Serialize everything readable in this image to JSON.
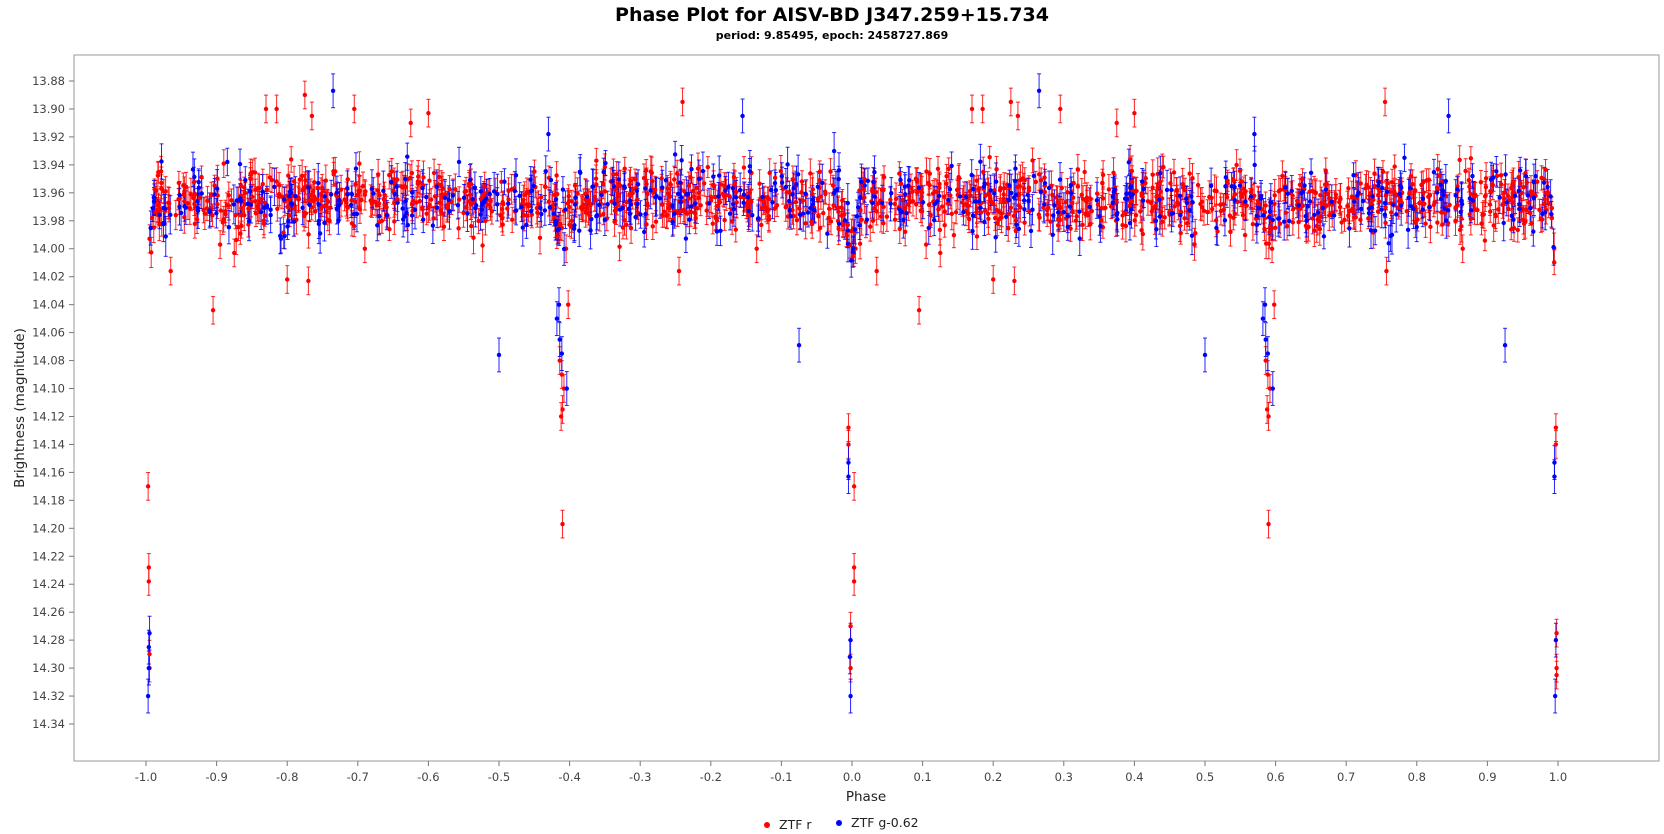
{
  "chart_data": {
    "type": "scatter",
    "title": "Phase Plot for AISV-BD J347.259+15.734",
    "subtitle": "period: 9.85495, epoch: 2458727.869",
    "xlabel": "Phase",
    "ylabel": "Brightness (magnitude)",
    "xlim": [
      -1.1,
      1.1
    ],
    "ylim": [
      14.353,
      13.86
    ],
    "y_inverted": true,
    "x_ticks": [
      "-1.0",
      "-0.9",
      "-0.8",
      "-0.7",
      "-0.6",
      "-0.5",
      "-0.4",
      "-0.3",
      "-0.2",
      "-0.1",
      "0.0",
      "0.1",
      "0.2",
      "0.3",
      "0.4",
      "0.5",
      "0.6",
      "0.7",
      "0.8",
      "0.9",
      "1.0"
    ],
    "y_ticks": [
      "13.88",
      "13.90",
      "13.92",
      "13.94",
      "13.96",
      "13.98",
      "14.00",
      "14.02",
      "14.04",
      "14.06",
      "14.08",
      "14.10",
      "14.12",
      "14.14",
      "14.16",
      "14.18",
      "14.20",
      "14.22",
      "14.24",
      "14.26",
      "14.28",
      "14.30",
      "14.32",
      "14.34"
    ],
    "grid": false,
    "legend_position": "bottom-center",
    "baseline_magnitude": 13.965,
    "series": [
      {
        "name": "ZTF r",
        "color": "#ff0000",
        "primary_eclipse_points": [
          [
            -0.997,
            14.17
          ],
          [
            -0.996,
            14.228
          ],
          [
            -0.996,
            14.238
          ],
          [
            -0.995,
            14.29
          ],
          [
            -0.995,
            14.3
          ],
          [
            0.003,
            14.228
          ],
          [
            0.003,
            14.238
          ],
          [
            -0.005,
            14.128
          ],
          [
            -0.005,
            14.14
          ],
          [
            0.003,
            14.17
          ],
          [
            -0.002,
            14.27
          ],
          [
            -0.002,
            14.3
          ],
          [
            0.997,
            14.128
          ],
          [
            0.997,
            14.14
          ],
          [
            0.998,
            14.275
          ],
          [
            0.998,
            14.3
          ],
          [
            0.998,
            14.305
          ]
        ],
        "secondary_eclipse_points": [
          [
            -0.412,
            14.12
          ],
          [
            -0.41,
            14.115
          ],
          [
            -0.411,
            14.09
          ],
          [
            -0.414,
            14.08
          ],
          [
            -0.408,
            14.1
          ],
          [
            -0.41,
            14.197
          ],
          [
            -0.405,
            14.0
          ],
          [
            -0.402,
            14.04
          ],
          [
            0.59,
            14.12
          ],
          [
            0.588,
            14.115
          ],
          [
            0.589,
            14.09
          ],
          [
            0.586,
            14.08
          ],
          [
            0.592,
            14.1
          ],
          [
            0.59,
            14.197
          ],
          [
            0.595,
            14.0
          ],
          [
            0.598,
            14.04
          ]
        ],
        "outlier_points": [
          [
            -0.965,
            14.016
          ],
          [
            -0.905,
            14.044
          ],
          [
            -0.895,
            13.997
          ],
          [
            -0.875,
            14.003
          ],
          [
            -0.83,
            13.9
          ],
          [
            -0.815,
            13.9
          ],
          [
            -0.8,
            14.022
          ],
          [
            -0.775,
            13.89
          ],
          [
            -0.77,
            14.023
          ],
          [
            -0.765,
            13.905
          ],
          [
            -0.74,
            13.98
          ],
          [
            -0.705,
            13.9
          ],
          [
            -0.69,
            14.0
          ],
          [
            -0.625,
            13.91
          ],
          [
            -0.6,
            13.903
          ],
          [
            -0.24,
            13.895
          ],
          [
            -0.245,
            14.016
          ],
          [
            -0.135,
            14.0
          ],
          [
            0.035,
            14.016
          ],
          [
            0.095,
            14.044
          ],
          [
            0.105,
            13.997
          ],
          [
            0.125,
            14.003
          ],
          [
            0.17,
            13.9
          ],
          [
            0.185,
            13.9
          ],
          [
            0.2,
            14.022
          ],
          [
            0.225,
            13.895
          ],
          [
            0.23,
            14.023
          ],
          [
            0.235,
            13.905
          ],
          [
            0.295,
            13.9
          ],
          [
            0.375,
            13.91
          ],
          [
            0.4,
            13.903
          ],
          [
            0.755,
            13.895
          ],
          [
            0.757,
            14.016
          ],
          [
            0.865,
            14.0
          ]
        ]
      },
      {
        "name": "ZTF g-0.62",
        "color": "#0000ff",
        "primary_eclipse_points": [
          [
            -0.996,
            14.285
          ],
          [
            -0.996,
            14.3
          ],
          [
            -0.997,
            14.32
          ],
          [
            -0.995,
            14.275
          ],
          [
            -0.005,
            14.153
          ],
          [
            -0.005,
            14.163
          ],
          [
            -0.002,
            14.28
          ],
          [
            -0.003,
            14.292
          ],
          [
            -0.002,
            14.32
          ],
          [
            0.995,
            14.153
          ],
          [
            0.995,
            14.163
          ],
          [
            0.997,
            14.28
          ],
          [
            0.996,
            14.32
          ]
        ],
        "secondary_eclipse_points": [
          [
            -0.418,
            14.05
          ],
          [
            -0.414,
            14.065
          ],
          [
            -0.411,
            14.075
          ],
          [
            -0.404,
            14.1
          ],
          [
            -0.415,
            14.04
          ],
          [
            0.582,
            14.05
          ],
          [
            0.586,
            14.065
          ],
          [
            0.589,
            14.075
          ],
          [
            0.596,
            14.1
          ],
          [
            0.585,
            14.04
          ]
        ],
        "outlier_points": [
          [
            -0.5,
            14.076
          ],
          [
            -0.075,
            14.069
          ],
          [
            0.5,
            14.076
          ],
          [
            0.925,
            14.069
          ],
          [
            -0.735,
            13.887
          ],
          [
            0.265,
            13.887
          ],
          [
            -0.155,
            13.905
          ],
          [
            0.845,
            13.905
          ],
          [
            -0.43,
            13.918
          ],
          [
            0.57,
            13.918
          ],
          [
            -0.42,
            13.98
          ]
        ]
      }
    ]
  }
}
